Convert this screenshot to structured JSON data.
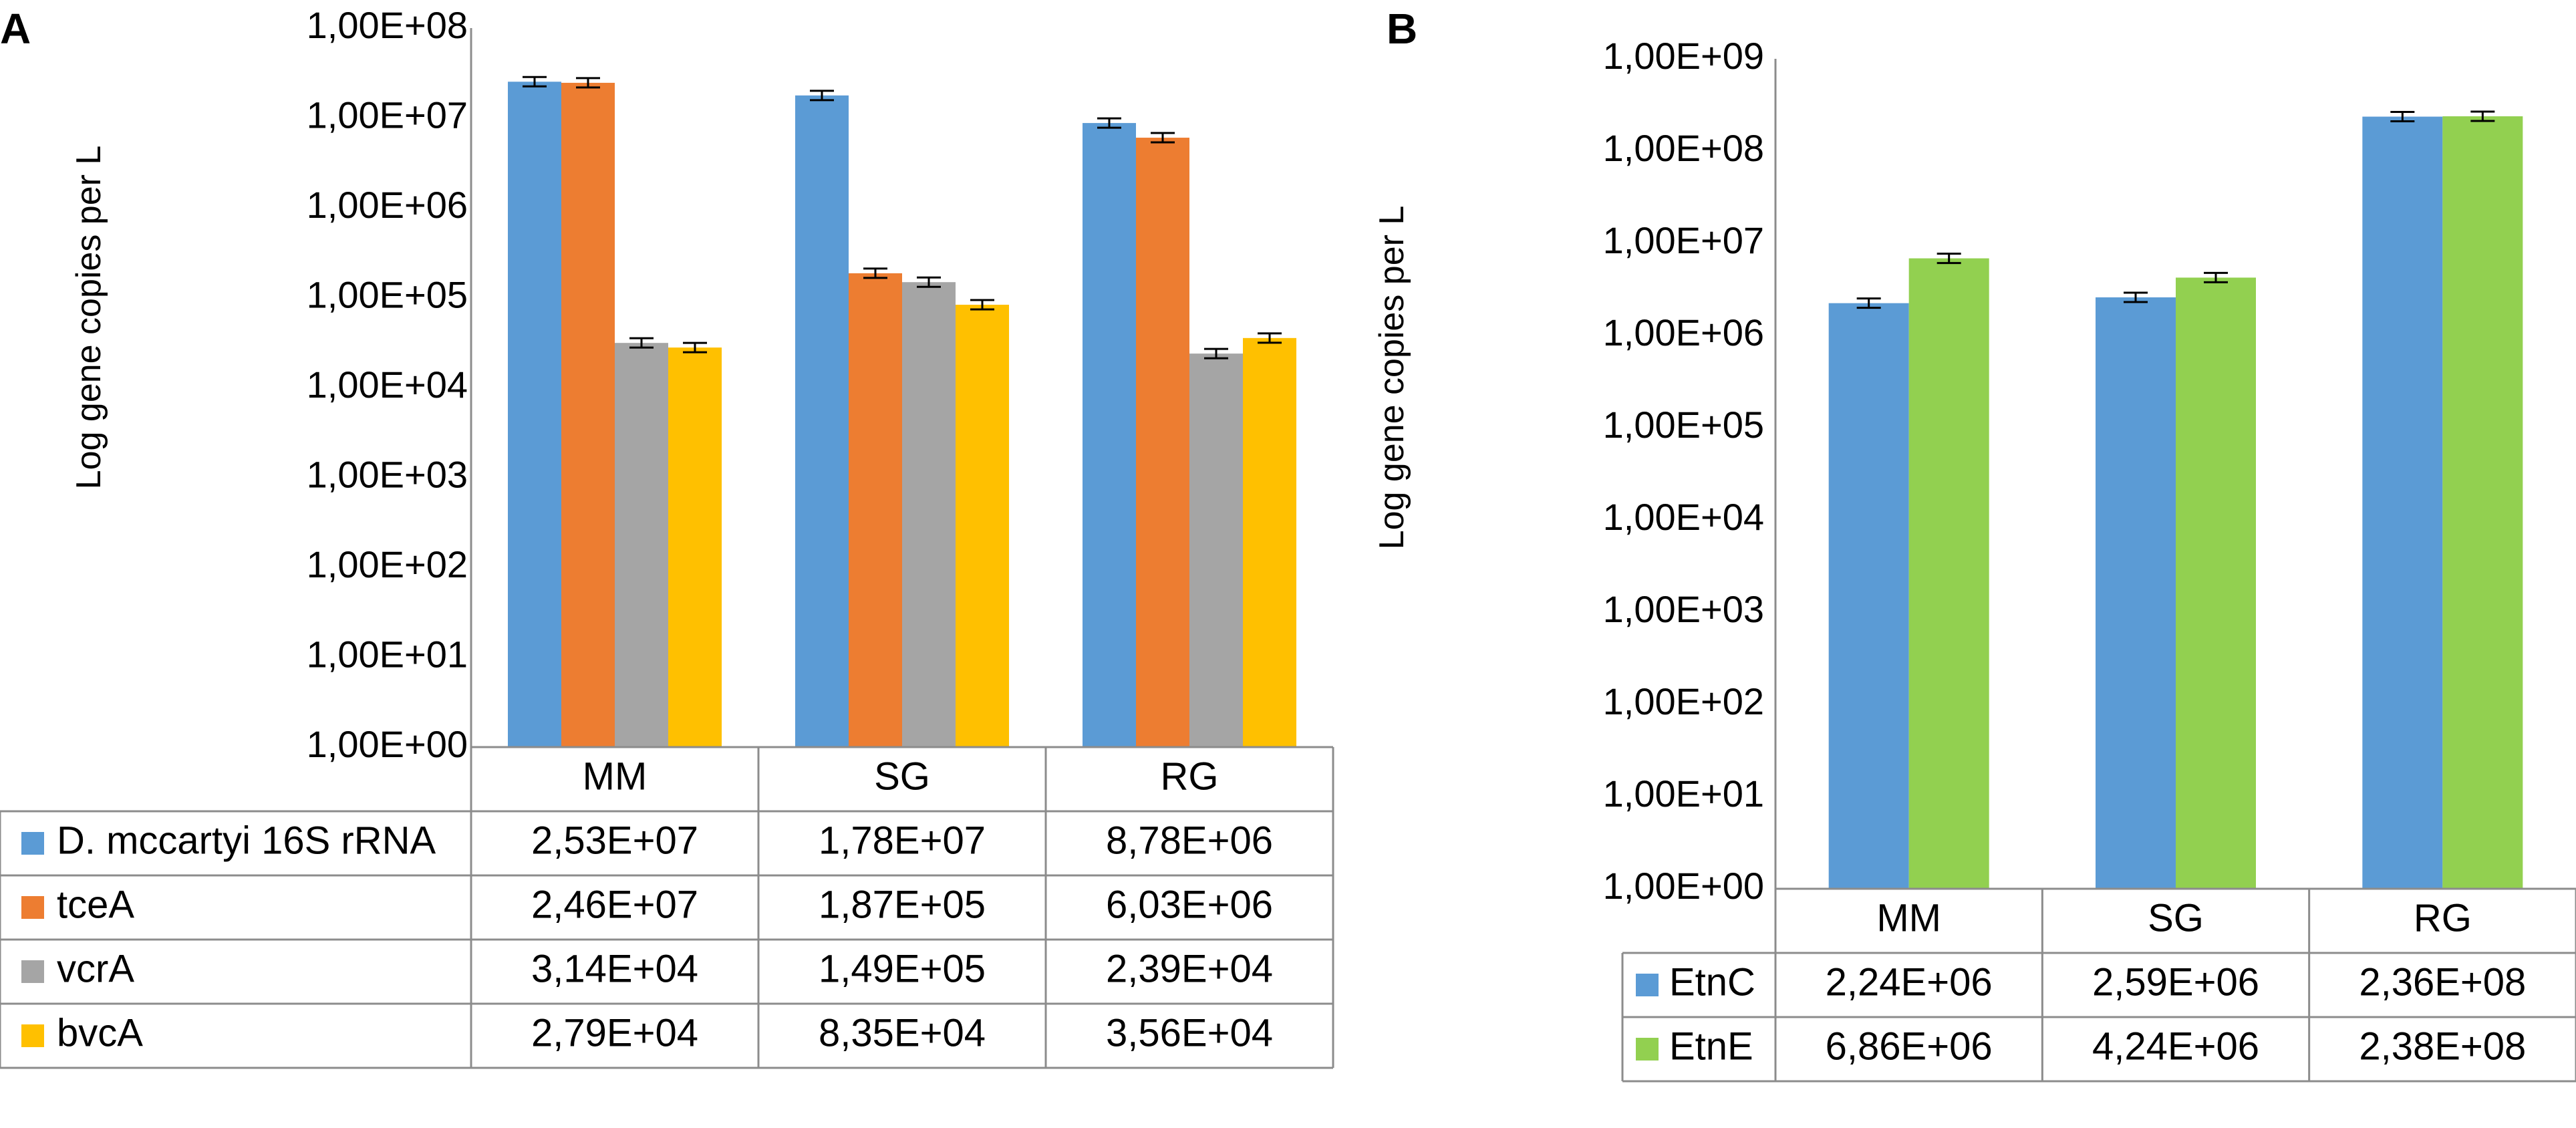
{
  "chart_data": [
    {
      "type": "bar",
      "panel_label": "A",
      "ylabel": "Log gene copies per L",
      "yscale": "log",
      "ylim": [
        1,
        100000000
      ],
      "yticks": [
        "1,00E+00",
        "1,00E+01",
        "1,00E+02",
        "1,00E+03",
        "1,00E+04",
        "1,00E+05",
        "1,00E+06",
        "1,00E+07",
        "1,00E+08"
      ],
      "categories": [
        "MM",
        "SG",
        "RG"
      ],
      "error_bars": true,
      "series": [
        {
          "name": "D. mccartyi 16S rRNA",
          "color": "#5b9bd5",
          "values": [
            25300000,
            17800000,
            8780000
          ],
          "labels": [
            "2,53E+07",
            "1,78E+07",
            "8,78E+06"
          ]
        },
        {
          "name": "tceA",
          "color": "#ed7d31",
          "values": [
            24600000,
            187000,
            6030000
          ],
          "labels": [
            "2,46E+07",
            "1,87E+05",
            "6,03E+06"
          ]
        },
        {
          "name": "vcrA",
          "color": "#a5a5a5",
          "values": [
            31400,
            149000,
            23900
          ],
          "labels": [
            "3,14E+04",
            "1,49E+05",
            "2,39E+04"
          ]
        },
        {
          "name": "bvcA",
          "color": "#ffc000",
          "values": [
            27900,
            83500,
            35600
          ],
          "labels": [
            "2,79E+04",
            "8,35E+04",
            "3,56E+04"
          ]
        }
      ]
    },
    {
      "type": "bar",
      "panel_label": "B",
      "ylabel": "Log gene copies per L",
      "yscale": "log",
      "ylim": [
        1,
        1000000000
      ],
      "yticks": [
        "1,00E+00",
        "1,00E+01",
        "1,00E+02",
        "1,00E+03",
        "1,00E+04",
        "1,00E+05",
        "1,00E+06",
        "1,00E+07",
        "1,00E+08",
        "1,00E+09"
      ],
      "categories": [
        "MM",
        "SG",
        "RG"
      ],
      "error_bars": true,
      "series": [
        {
          "name": "EtnC",
          "color": "#5b9bd5",
          "values": [
            2240000,
            2590000,
            236000000
          ],
          "labels": [
            "2,24E+06",
            "2,59E+06",
            "2,36E+08"
          ]
        },
        {
          "name": "EtnE",
          "color": "#92d050",
          "values": [
            6860000,
            4240000,
            238000000
          ],
          "labels": [
            "6,86E+06",
            "4,24E+06",
            "2,38E+08"
          ]
        }
      ]
    }
  ]
}
